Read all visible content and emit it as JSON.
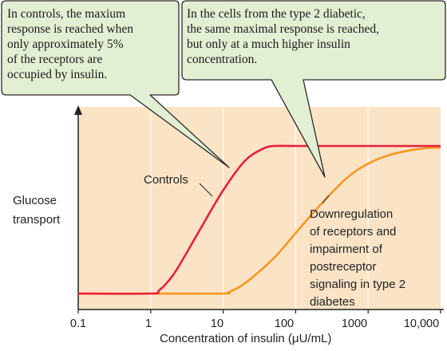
{
  "callouts": {
    "left": {
      "lines": [
        "In controls, the maxium",
        "response is reached when",
        "only approximately 5%",
        "of the receptors are",
        "occupied by insulin."
      ]
    },
    "right": {
      "lines": [
        "In the cells from the type 2 diabetic,",
        "the same maximal response is reached,",
        "but only at a much higher insulin",
        "concentration."
      ]
    }
  },
  "chart_data": {
    "type": "line",
    "xscale": "log",
    "xlim": [
      0.1,
      10000
    ],
    "x_tick_labels": [
      "0.1",
      "1",
      "10",
      "100",
      "1000",
      "10,000"
    ],
    "xlabel": "Concentration of insulin (μU/mL)",
    "ylabel_lines": [
      "Glucose",
      "transport"
    ],
    "background_color": "#fbe3c6",
    "series": [
      {
        "name": "Controls",
        "color": "#e8203a",
        "x": [
          0.1,
          1,
          1.3,
          2,
          3,
          5,
          10,
          20,
          35,
          50,
          100,
          1000,
          10000
        ],
        "y": [
          0,
          0,
          0.02,
          0.12,
          0.26,
          0.45,
          0.7,
          0.9,
          0.98,
          1.0,
          1.0,
          1.0,
          1.0
        ]
      },
      {
        "name": "Downregulation of receptors and impairment of postreceptor signaling in type 2 diabetes",
        "color": "#f7961e",
        "x": [
          0.1,
          1,
          10,
          12,
          20,
          50,
          100,
          200,
          500,
          1000,
          2000,
          5000,
          10000
        ],
        "y": [
          0,
          0,
          0,
          0.01,
          0.07,
          0.24,
          0.41,
          0.58,
          0.78,
          0.88,
          0.94,
          0.98,
          0.99
        ]
      }
    ],
    "annotations": {
      "controls_label": "Controls",
      "diabetic_label_lines": [
        "Downregulation",
        "of receptors and",
        "impairment of",
        "postreceptor",
        "signaling in type 2",
        "diabetes"
      ]
    }
  }
}
